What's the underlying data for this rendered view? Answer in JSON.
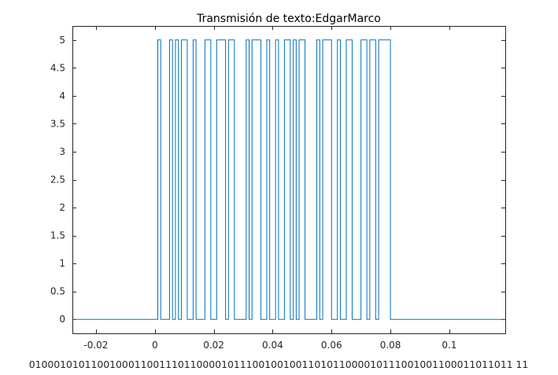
{
  "chart_data": {
    "type": "line",
    "title": "Transmisión de texto:EdgarMarco",
    "xlabel": "010001010110010001100111011000010111001001001101011000010111001001100011011011 11",
    "ylabel": "",
    "xlim": [
      -0.028,
      0.119
    ],
    "ylim": [
      -0.25,
      5.25
    ],
    "grid": false,
    "line_color": "#0072BD",
    "amplitude": 5,
    "x_start": -0.028,
    "bit_start": 0,
    "bit_duration": 0.001,
    "bits": "01000101011001000110011101100001011100100100110101100001011100100110001101101111",
    "x_end": 0.119,
    "xticks": [
      -0.02,
      0,
      0.02,
      0.04,
      0.06,
      0.08,
      0.1
    ],
    "xtick_labels": [
      "-0.02",
      "0",
      "0.02",
      "0.04",
      "0.06",
      "0.08",
      "0.1"
    ],
    "yticks": [
      0,
      0.5,
      1,
      1.5,
      2,
      2.5,
      3,
      3.5,
      4,
      4.5,
      5
    ],
    "ytick_labels": [
      "0",
      "0.5",
      "1",
      "1.5",
      "2",
      "2.5",
      "3",
      "3.5",
      "4",
      "4.5",
      "5"
    ]
  }
}
